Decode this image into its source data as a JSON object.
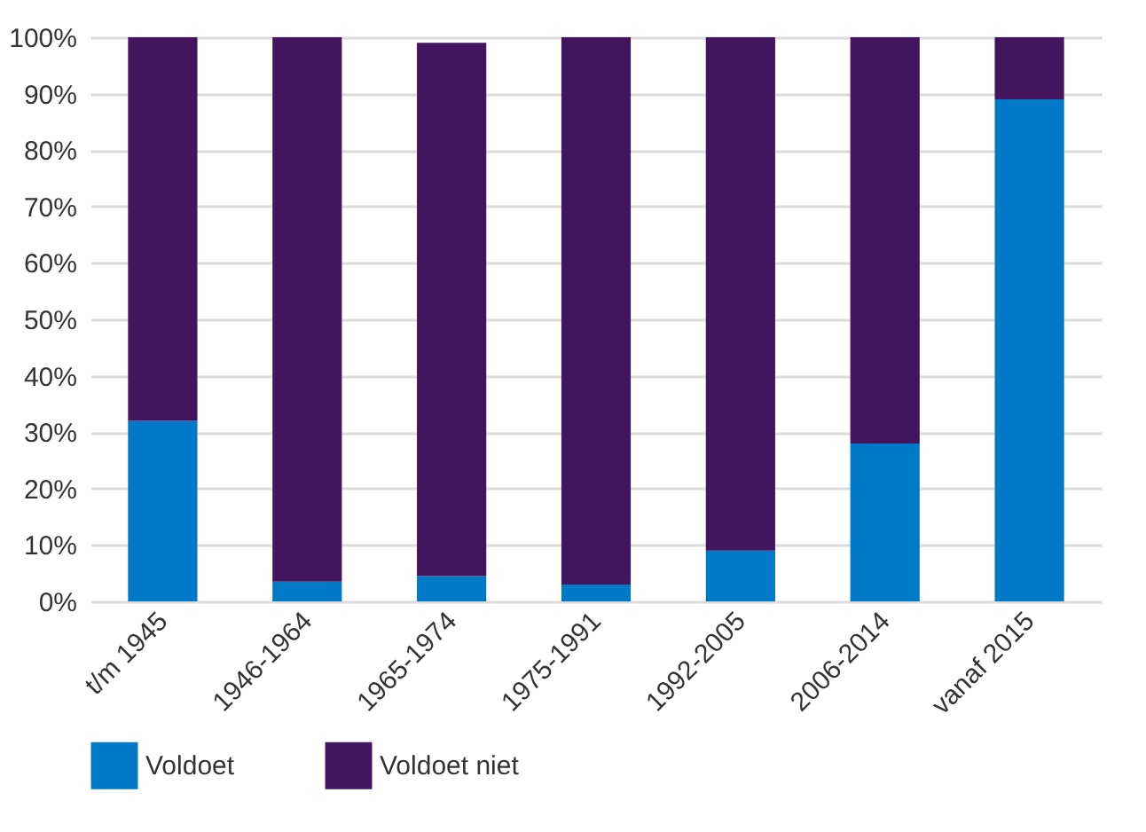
{
  "chart_data": {
    "type": "bar",
    "stacked": true,
    "categories": [
      "t/m 1945",
      "1946-1964",
      "1965-1974",
      "1975-1991",
      "1992-2005",
      "2006-2014",
      "vanaf 2015"
    ],
    "series": [
      {
        "name": "Voldoet",
        "color": "#0079c7",
        "values": [
          32,
          3.5,
          4.5,
          3,
          9,
          28,
          89
        ]
      },
      {
        "name": "Voldoet niet",
        "color": "#42155e",
        "values": [
          68,
          96.5,
          94.5,
          97,
          91,
          72,
          11
        ]
      }
    ],
    "ylim": [
      0,
      100
    ],
    "yticks": [
      {
        "value": 0,
        "label": "0%"
      },
      {
        "value": 10,
        "label": "10%"
      },
      {
        "value": 20,
        "label": "20%"
      },
      {
        "value": 30,
        "label": "30%"
      },
      {
        "value": 40,
        "label": "40%"
      },
      {
        "value": 50,
        "label": "50%"
      },
      {
        "value": 60,
        "label": "60%"
      },
      {
        "value": 70,
        "label": "70%"
      },
      {
        "value": 80,
        "label": "80%"
      },
      {
        "value": 90,
        "label": "90%"
      },
      {
        "value": 100,
        "label": "100%"
      }
    ],
    "grid": "y",
    "legend": "bottom"
  }
}
